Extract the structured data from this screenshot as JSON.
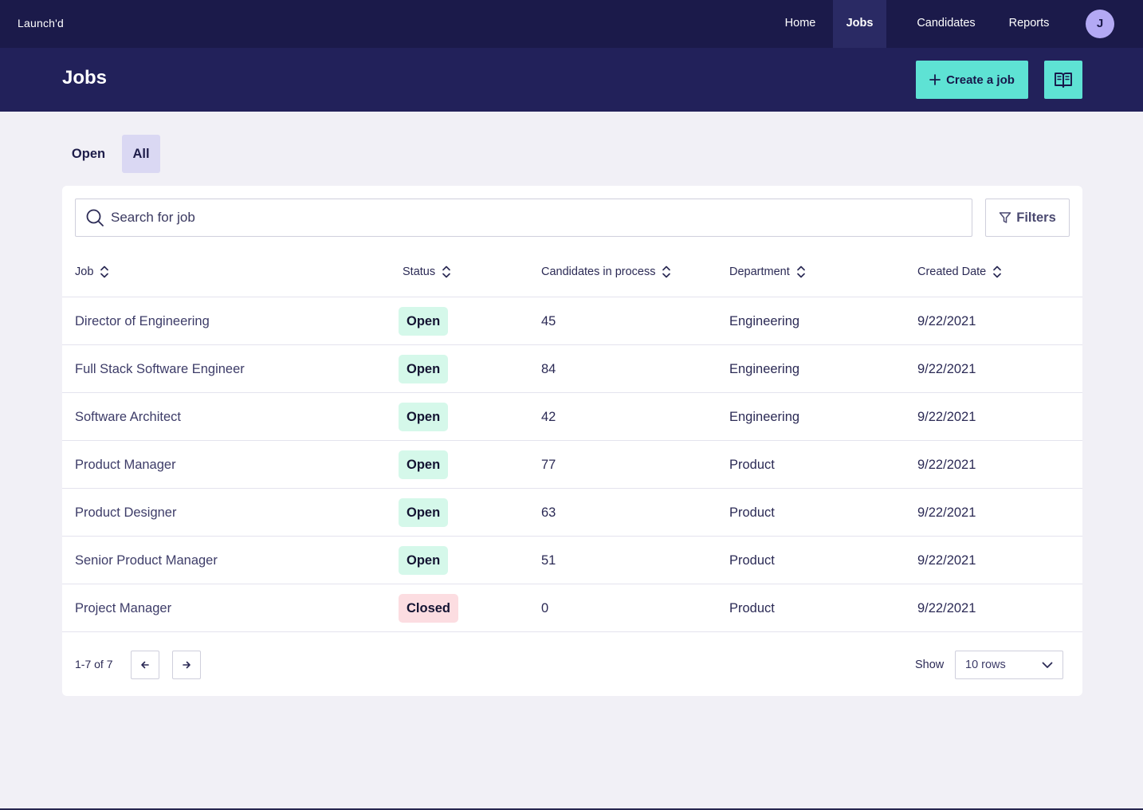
{
  "app": {
    "brand": "Launch'd"
  },
  "nav": {
    "items": [
      {
        "label": "Home",
        "active": false
      },
      {
        "label": "Jobs",
        "active": true
      },
      {
        "label": "Candidates",
        "active": false
      },
      {
        "label": "Reports",
        "active": false
      }
    ],
    "avatar_initial": "J"
  },
  "header": {
    "title": "Jobs",
    "create_label": "Create a job",
    "create_icon": "plus-icon",
    "guide_icon": "book-open-icon"
  },
  "tabs": [
    {
      "label": "Open",
      "active": false
    },
    {
      "label": "All",
      "active": true
    }
  ],
  "search": {
    "placeholder": "Search for job",
    "value": ""
  },
  "filters": {
    "label": "Filters",
    "icon": "filter-icon"
  },
  "table": {
    "columns": [
      "Job",
      "Status",
      "Candidates in process",
      "Department",
      "Created Date"
    ],
    "rows": [
      {
        "job": "Director of Engineering",
        "status": "Open",
        "candidates": "45",
        "department": "Engineering",
        "created": "9/22/2021"
      },
      {
        "job": "Full Stack Software Engineer",
        "status": "Open",
        "candidates": "84",
        "department": "Engineering",
        "created": "9/22/2021"
      },
      {
        "job": "Software Architect",
        "status": "Open",
        "candidates": "42",
        "department": "Engineering",
        "created": "9/22/2021"
      },
      {
        "job": "Product Manager",
        "status": "Open",
        "candidates": "77",
        "department": "Product",
        "created": "9/22/2021"
      },
      {
        "job": "Product Designer",
        "status": "Open",
        "candidates": "63",
        "department": "Product",
        "created": "9/22/2021"
      },
      {
        "job": "Senior Product Manager",
        "status": "Open",
        "candidates": "51",
        "department": "Product",
        "created": "9/22/2021"
      },
      {
        "job": "Project Manager",
        "status": "Closed",
        "candidates": "0",
        "department": "Product",
        "created": "9/22/2021"
      }
    ]
  },
  "pagination": {
    "count": "1-7 of 7",
    "show_label": "Show",
    "rows_value": "10 rows"
  },
  "colors": {
    "nav_bg": "#1b1a4a",
    "header_bg": "#22215a",
    "accent": "#5ee2d4",
    "open_badge": "#d5f8ea",
    "closed_badge": "#fcdde1",
    "tab_active": "#dad8f3",
    "page_bg": "#f1f0f6"
  }
}
